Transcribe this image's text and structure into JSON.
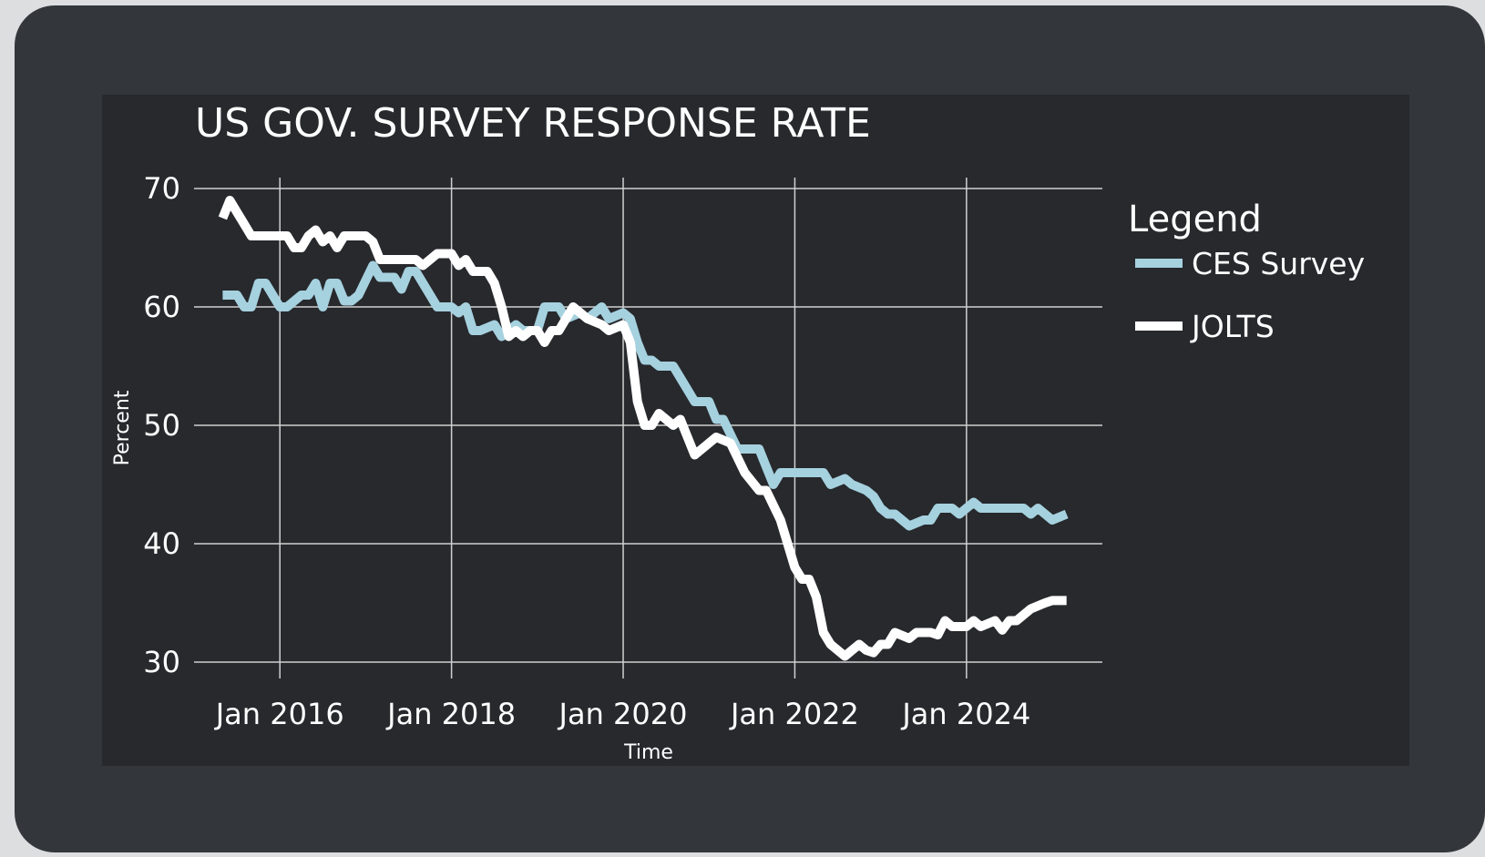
{
  "colors": {
    "background": "#33373c",
    "plot_panel": "#27292d",
    "grid": "#d0d0d0",
    "text": "#ffffff"
  },
  "chart_data": {
    "type": "line",
    "title": "US GOV. SURVEY RESPONSE RATE",
    "xlabel": "Time",
    "ylabel": "Percent",
    "ylim": [
      30,
      70
    ],
    "xlim": [
      "2015-01",
      "2025-08"
    ],
    "y_ticks": [
      30,
      40,
      50,
      60,
      70
    ],
    "x_ticks": [
      {
        "label": "Jan 2016",
        "date": "2016-01"
      },
      {
        "label": "Jan 2018",
        "date": "2018-01"
      },
      {
        "label": "Jan 2020",
        "date": "2020-01"
      },
      {
        "label": "Jan 2022",
        "date": "2022-01"
      },
      {
        "label": "Jan 2024",
        "date": "2024-01"
      }
    ],
    "grid": true,
    "legend": {
      "title": "Legend",
      "placement": "right-top"
    },
    "series": [
      {
        "name": "CES Survey",
        "color": "#a6d1df",
        "points": [
          [
            "2015-05",
            61
          ],
          [
            "2015-07",
            61
          ],
          [
            "2015-08",
            60
          ],
          [
            "2015-09",
            60
          ],
          [
            "2015-10",
            62
          ],
          [
            "2015-11",
            62
          ],
          [
            "2016-01",
            60
          ],
          [
            "2016-02",
            60
          ],
          [
            "2016-04",
            61
          ],
          [
            "2016-05",
            61
          ],
          [
            "2016-06",
            62
          ],
          [
            "2016-07",
            60
          ],
          [
            "2016-08",
            62
          ],
          [
            "2016-09",
            62
          ],
          [
            "2016-10",
            60.5
          ],
          [
            "2016-11",
            60.5
          ],
          [
            "2016-12",
            61
          ],
          [
            "2017-02",
            63.5
          ],
          [
            "2017-03",
            62.5
          ],
          [
            "2017-05",
            62.5
          ],
          [
            "2017-06",
            61.5
          ],
          [
            "2017-07",
            63
          ],
          [
            "2017-08",
            63
          ],
          [
            "2017-10",
            61
          ],
          [
            "2017-11",
            60
          ],
          [
            "2018-01",
            60
          ],
          [
            "2018-02",
            59.5
          ],
          [
            "2018-03",
            60
          ],
          [
            "2018-04",
            58
          ],
          [
            "2018-05",
            58
          ],
          [
            "2018-07",
            58.5
          ],
          [
            "2018-08",
            57.5
          ],
          [
            "2018-10",
            58.5
          ],
          [
            "2018-11",
            58
          ],
          [
            "2019-01",
            58
          ],
          [
            "2019-02",
            60
          ],
          [
            "2019-04",
            60
          ],
          [
            "2019-05",
            59
          ],
          [
            "2019-07",
            59.5
          ],
          [
            "2019-08",
            59
          ],
          [
            "2019-10",
            60
          ],
          [
            "2019-11",
            59
          ],
          [
            "2020-01",
            59.5
          ],
          [
            "2020-02",
            59
          ],
          [
            "2020-03",
            57
          ],
          [
            "2020-04",
            55.5
          ],
          [
            "2020-05",
            55.5
          ],
          [
            "2020-06",
            55
          ],
          [
            "2020-08",
            55
          ],
          [
            "2020-10",
            53
          ],
          [
            "2020-11",
            52
          ],
          [
            "2021-01",
            52
          ],
          [
            "2021-02",
            50.5
          ],
          [
            "2021-03",
            50.5
          ],
          [
            "2021-05",
            48
          ],
          [
            "2021-08",
            48
          ],
          [
            "2021-09",
            46.5
          ],
          [
            "2021-10",
            45
          ],
          [
            "2021-11",
            46
          ],
          [
            "2022-05",
            46
          ],
          [
            "2022-06",
            45
          ],
          [
            "2022-08",
            45.5
          ],
          [
            "2022-09",
            45
          ],
          [
            "2022-11",
            44.5
          ],
          [
            "2022-12",
            44
          ],
          [
            "2023-01",
            43
          ],
          [
            "2023-02",
            42.5
          ],
          [
            "2023-03",
            42.5
          ],
          [
            "2023-05",
            41.5
          ],
          [
            "2023-07",
            42
          ],
          [
            "2023-08",
            42
          ],
          [
            "2023-09",
            43
          ],
          [
            "2023-11",
            43
          ],
          [
            "2023-12",
            42.5
          ],
          [
            "2024-01",
            43
          ],
          [
            "2024-02",
            43.5
          ],
          [
            "2024-03",
            43
          ],
          [
            "2024-05",
            43
          ],
          [
            "2024-07",
            43
          ],
          [
            "2024-09",
            43
          ],
          [
            "2024-10",
            42.5
          ],
          [
            "2024-11",
            43
          ],
          [
            "2025-01",
            42
          ],
          [
            "2025-03",
            42.5
          ]
        ]
      },
      {
        "name": "JOLTS",
        "color": "#ffffff",
        "points": [
          [
            "2015-05",
            67.5
          ],
          [
            "2015-06",
            69
          ],
          [
            "2015-07",
            68
          ],
          [
            "2015-08",
            67
          ],
          [
            "2015-09",
            66
          ],
          [
            "2016-01",
            66
          ],
          [
            "2016-02",
            66
          ],
          [
            "2016-03",
            65
          ],
          [
            "2016-04",
            65
          ],
          [
            "2016-05",
            66
          ],
          [
            "2016-06",
            66.5
          ],
          [
            "2016-07",
            65.5
          ],
          [
            "2016-08",
            66
          ],
          [
            "2016-09",
            65
          ],
          [
            "2016-10",
            66
          ],
          [
            "2017-01",
            66
          ],
          [
            "2017-02",
            65.5
          ],
          [
            "2017-03",
            64
          ],
          [
            "2017-06",
            64
          ],
          [
            "2017-08",
            64
          ],
          [
            "2017-09",
            63.5
          ],
          [
            "2017-10",
            64
          ],
          [
            "2017-11",
            64.5
          ],
          [
            "2018-01",
            64.5
          ],
          [
            "2018-02",
            63.5
          ],
          [
            "2018-03",
            64
          ],
          [
            "2018-04",
            63
          ],
          [
            "2018-06",
            63
          ],
          [
            "2018-07",
            62
          ],
          [
            "2018-08",
            60
          ],
          [
            "2018-09",
            57.5
          ],
          [
            "2018-10",
            58
          ],
          [
            "2018-11",
            57.5
          ],
          [
            "2018-12",
            58
          ],
          [
            "2019-01",
            58
          ],
          [
            "2019-02",
            57
          ],
          [
            "2019-03",
            58
          ],
          [
            "2019-04",
            58
          ],
          [
            "2019-05",
            59
          ],
          [
            "2019-06",
            60
          ],
          [
            "2019-08",
            59
          ],
          [
            "2019-10",
            58.5
          ],
          [
            "2019-11",
            58
          ],
          [
            "2020-01",
            58.5
          ],
          [
            "2020-02",
            57
          ],
          [
            "2020-03",
            52
          ],
          [
            "2020-04",
            50
          ],
          [
            "2020-05",
            50
          ],
          [
            "2020-06",
            51
          ],
          [
            "2020-08",
            50
          ],
          [
            "2020-09",
            50.5
          ],
          [
            "2020-11",
            47.5
          ],
          [
            "2020-12",
            48
          ],
          [
            "2021-02",
            49
          ],
          [
            "2021-04",
            48.5
          ],
          [
            "2021-06",
            46
          ],
          [
            "2021-08",
            44.5
          ],
          [
            "2021-09",
            44.5
          ],
          [
            "2021-11",
            42
          ],
          [
            "2022-01",
            38
          ],
          [
            "2022-02",
            37
          ],
          [
            "2022-03",
            37
          ],
          [
            "2022-04",
            35.5
          ],
          [
            "2022-05",
            32.5
          ],
          [
            "2022-06",
            31.5
          ],
          [
            "2022-08",
            30.5
          ],
          [
            "2022-09",
            31
          ],
          [
            "2022-10",
            31.5
          ],
          [
            "2022-11",
            31
          ],
          [
            "2022-12",
            30.8
          ],
          [
            "2023-01",
            31.5
          ],
          [
            "2023-02",
            31.5
          ],
          [
            "2023-03",
            32.5
          ],
          [
            "2023-05",
            32
          ],
          [
            "2023-06",
            32.5
          ],
          [
            "2023-08",
            32.5
          ],
          [
            "2023-09",
            32.3
          ],
          [
            "2023-10",
            33.5
          ],
          [
            "2023-11",
            33
          ],
          [
            "2024-01",
            33
          ],
          [
            "2024-02",
            33.5
          ],
          [
            "2024-03",
            33
          ],
          [
            "2024-05",
            33.5
          ],
          [
            "2024-06",
            32.7
          ],
          [
            "2024-07",
            33.5
          ],
          [
            "2024-08",
            33.5
          ],
          [
            "2024-10",
            34.5
          ],
          [
            "2024-12",
            35
          ],
          [
            "2025-01",
            35.2
          ],
          [
            "2025-03",
            35.2
          ]
        ]
      }
    ]
  }
}
